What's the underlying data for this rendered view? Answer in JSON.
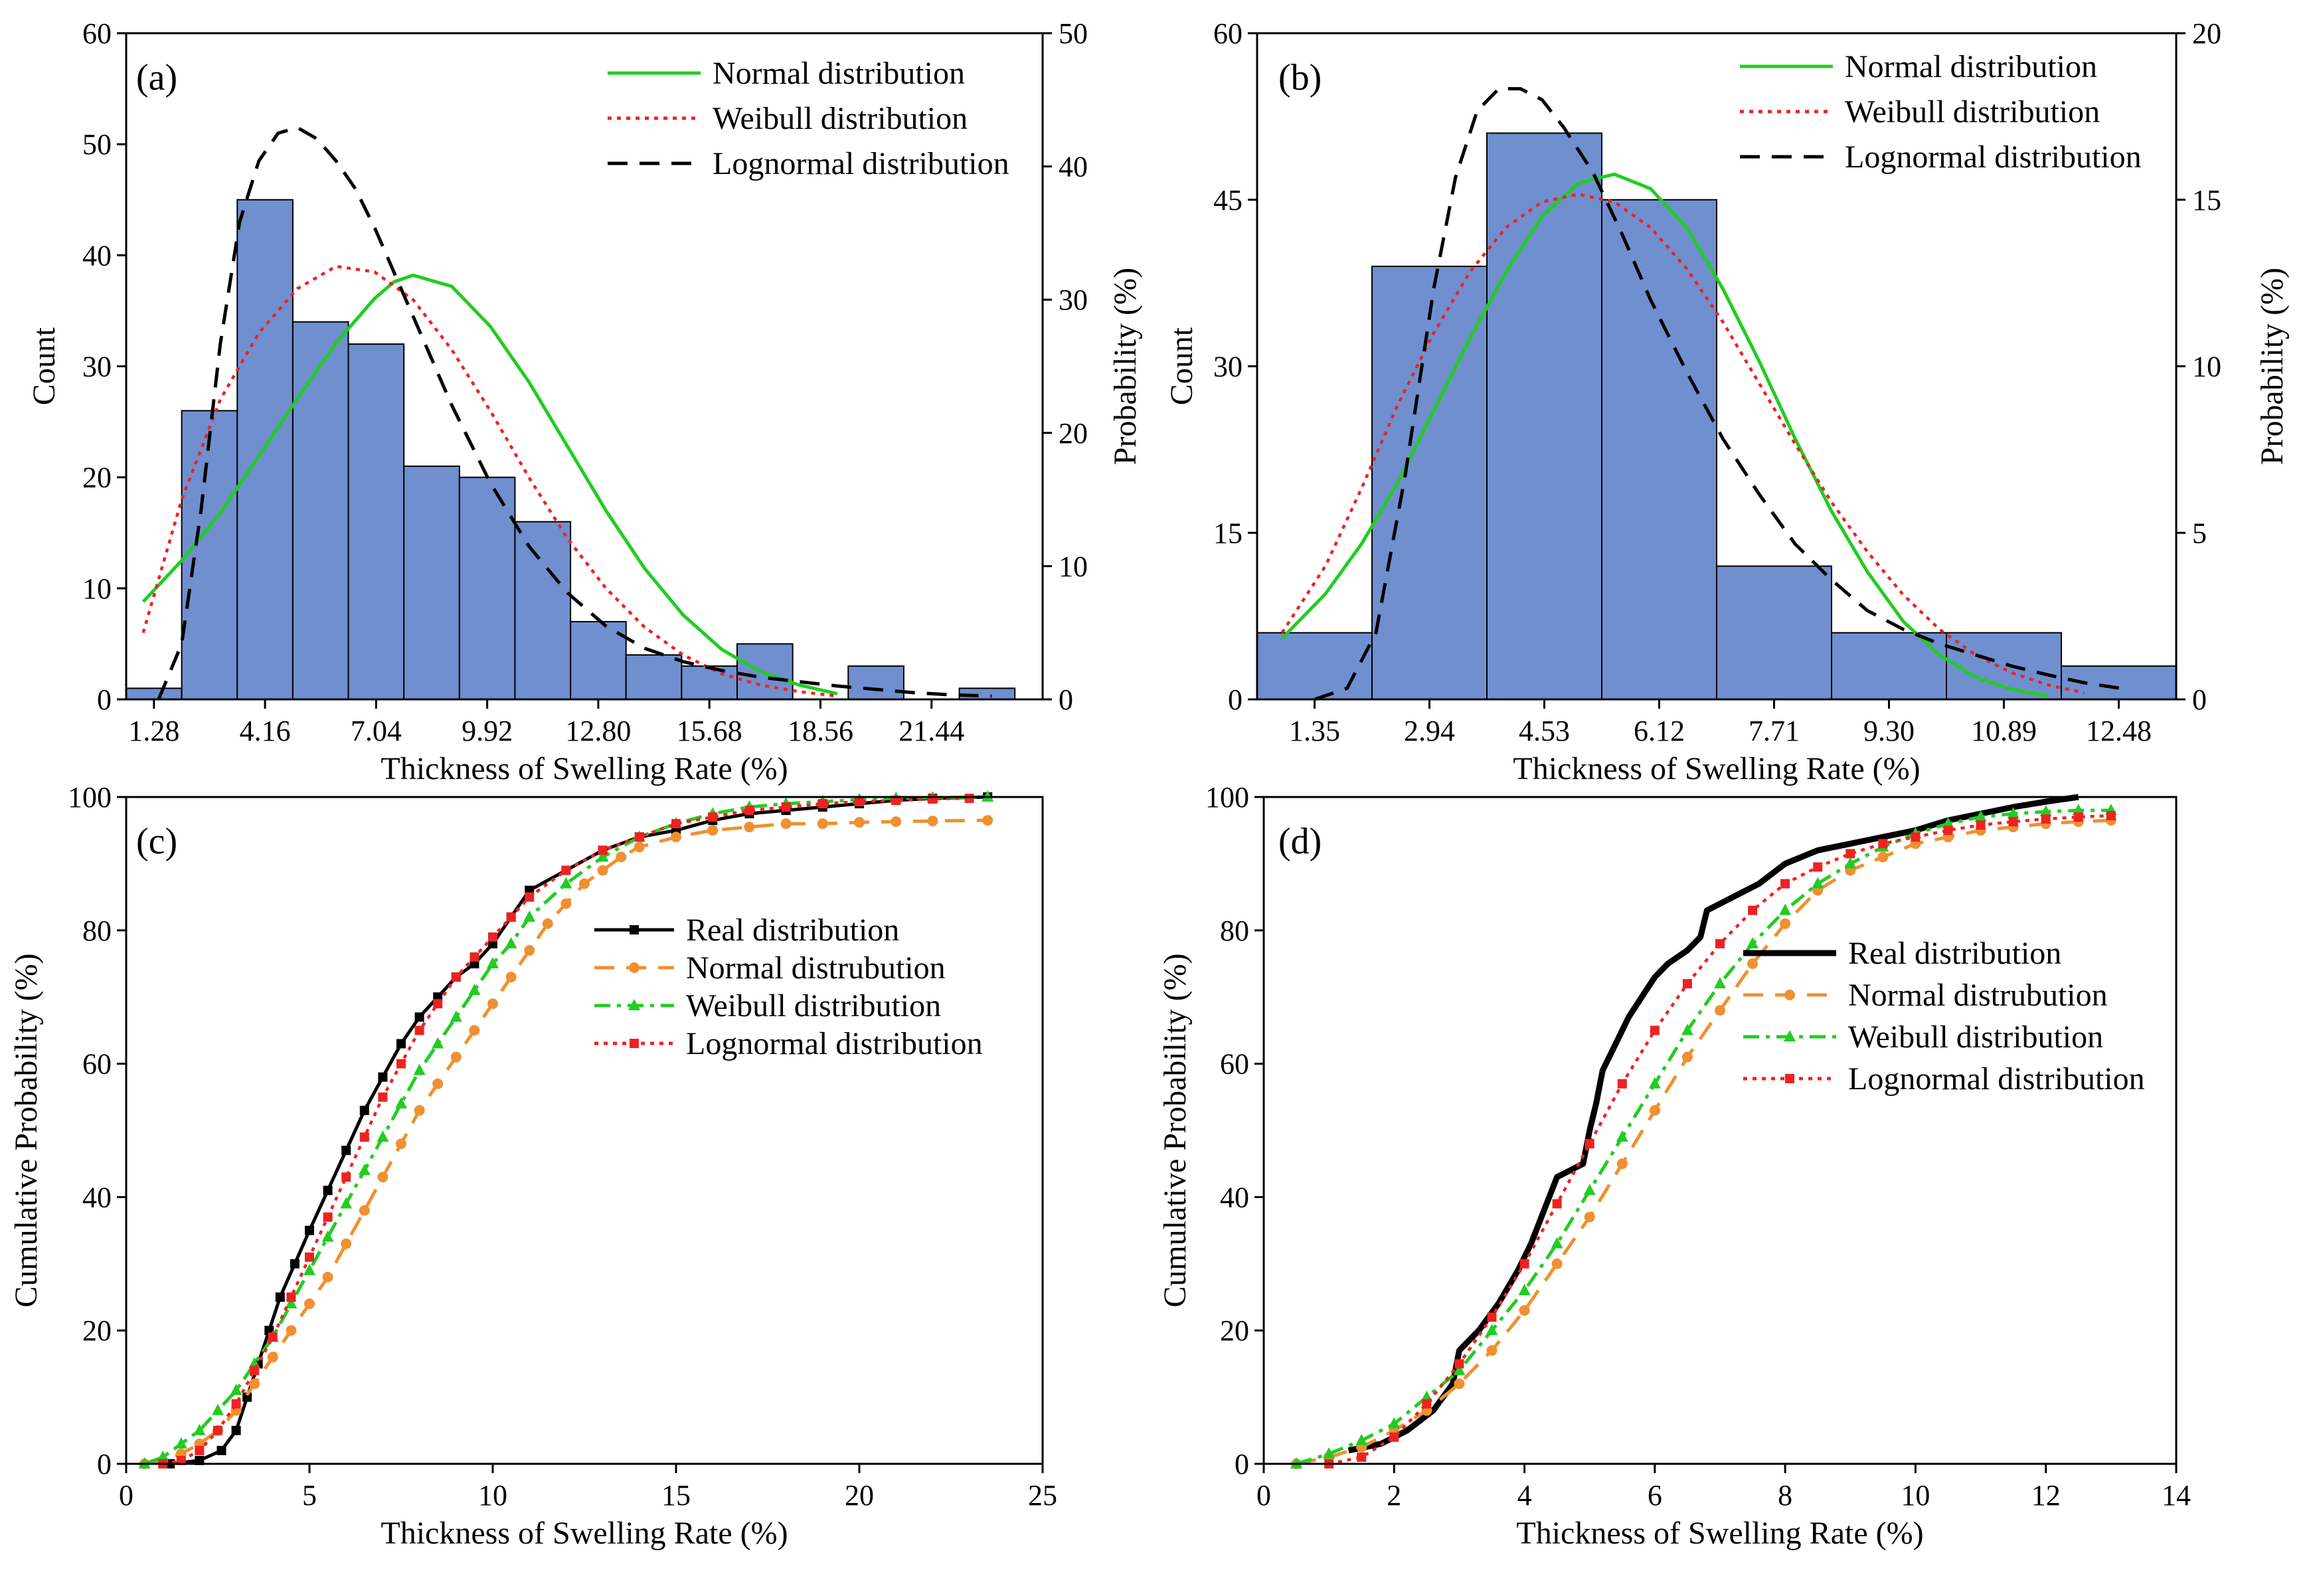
{
  "chart_data": [
    {
      "panel": "(a)",
      "type": "bar",
      "subtype": "histogram with fitted distribution curves",
      "xlabel": "Thickness of Swelling Rate (%)",
      "ylabel": "Count",
      "ylabel_right": "Probability (%)",
      "xtick_labels": [
        "1.28",
        "4.16",
        "7.04",
        "9.92",
        "12.80",
        "15.68",
        "18.56",
        "21.44"
      ],
      "xlim": [
        0.56,
        24.32
      ],
      "ylim": [
        0,
        60
      ],
      "yticks": [
        0,
        10,
        20,
        30,
        40,
        50,
        60
      ],
      "ylim_right": [
        0,
        50
      ],
      "yticks_right": [
        0,
        10,
        20,
        30,
        40,
        50
      ],
      "bin_width": 1.44,
      "bin_start": 0.56,
      "counts": [
        1,
        26,
        45,
        34,
        32,
        21,
        20,
        16,
        7,
        4,
        3,
        5,
        0,
        3,
        0,
        1
      ],
      "bar_color": "#6f8fcf",
      "series": [
        {
          "name": "Normal distribution",
          "color": "#22cc22",
          "style": "solid",
          "x": [
            1.0,
            2.0,
            3.0,
            4.0,
            5.0,
            6.0,
            7.0,
            7.5,
            8.0,
            9.0,
            10.0,
            11.0,
            12.0,
            13.0,
            14.0,
            15.0,
            16.0,
            17.0,
            18.0,
            19.0
          ],
          "y": [
            8.8,
            12.5,
            16.8,
            21.9,
            27.1,
            32.1,
            36.1,
            37.6,
            38.2,
            37.2,
            33.6,
            28.6,
            22.8,
            17.0,
            11.8,
            7.6,
            4.5,
            2.5,
            1.3,
            0.5
          ]
        },
        {
          "name": "Weibull distribution",
          "color": "#ee2222",
          "style": "dotted",
          "x": [
            1.0,
            2.0,
            3.0,
            4.0,
            5.0,
            6.0,
            7.0,
            8.0,
            9.0,
            10.0,
            11.0,
            12.0,
            13.0,
            14.0,
            15.0,
            16.0,
            17.0,
            18.0,
            19.0
          ],
          "y": [
            6.0,
            18.0,
            27.0,
            33.0,
            37.0,
            39.0,
            38.5,
            36.0,
            31.5,
            26.0,
            20.0,
            14.5,
            10.0,
            6.5,
            4.0,
            2.3,
            1.3,
            0.7,
            0.3
          ]
        },
        {
          "name": "Lognormal distribution",
          "color": "#000000",
          "style": "dashed",
          "x": [
            1.4,
            2.0,
            2.5,
            3.0,
            3.5,
            4.0,
            4.5,
            5.0,
            5.5,
            6.0,
            6.5,
            7.0,
            8.0,
            9.0,
            10.0,
            11.0,
            12.0,
            13.0,
            14.0,
            15.0,
            16.0,
            17.0,
            18.0,
            19.0,
            20.0,
            21.0,
            22.0,
            23.0
          ],
          "y": [
            0.0,
            5.0,
            17.0,
            32.0,
            43.0,
            48.5,
            51.0,
            51.5,
            50.5,
            48.5,
            46.0,
            42.5,
            34.5,
            26.5,
            19.5,
            13.8,
            9.6,
            6.6,
            4.6,
            3.4,
            2.6,
            2.0,
            1.6,
            1.2,
            0.9,
            0.6,
            0.4,
            0.3
          ]
        }
      ],
      "legend_position": "top-right"
    },
    {
      "panel": "(b)",
      "type": "bar",
      "subtype": "histogram with fitted distribution curves",
      "xlabel": "Thickness of Swelling Rate (%)",
      "ylabel": "Count",
      "ylabel_right": "Probability (%)",
      "xtick_labels": [
        "1.35",
        "2.94",
        "4.53",
        "6.12",
        "7.71",
        "9.30",
        "10.89",
        "12.48"
      ],
      "xlim": [
        0.555,
        13.275
      ],
      "ylim": [
        0,
        60
      ],
      "yticks": [
        0,
        15,
        30,
        45,
        60
      ],
      "ylim_right": [
        0,
        20
      ],
      "yticks_right": [
        0,
        5,
        10,
        15,
        20
      ],
      "bin_width": 1.59,
      "bin_start": 0.555,
      "counts": [
        6,
        39,
        51,
        45,
        12,
        6,
        6,
        3
      ],
      "bar_color": "#6f8fcf",
      "series": [
        {
          "name": "Normal distribution",
          "color": "#22cc22",
          "style": "solid",
          "x": [
            0.9,
            1.5,
            2.0,
            2.5,
            3.0,
            3.5,
            4.0,
            4.5,
            5.0,
            5.5,
            6.0,
            6.5,
            7.0,
            7.5,
            8.0,
            8.5,
            9.0,
            9.5,
            10.0,
            10.5,
            11.0,
            11.5
          ],
          "y": [
            5.5,
            9.5,
            14.0,
            19.5,
            26.0,
            32.5,
            38.5,
            43.5,
            46.5,
            47.3,
            46.0,
            42.5,
            37.0,
            30.5,
            23.5,
            17.0,
            11.5,
            7.0,
            4.0,
            2.0,
            0.9,
            0.3
          ]
        },
        {
          "name": "Weibull distribution",
          "color": "#ee2222",
          "style": "dotted",
          "x": [
            0.9,
            1.5,
            2.0,
            2.5,
            3.0,
            3.5,
            4.0,
            4.5,
            5.0,
            5.5,
            6.0,
            6.5,
            7.0,
            7.5,
            8.0,
            8.5,
            9.0,
            9.5,
            10.0,
            10.5,
            11.0,
            11.5,
            12.0
          ],
          "y": [
            6.0,
            12.0,
            19.0,
            26.5,
            33.0,
            38.5,
            42.5,
            44.8,
            45.5,
            44.8,
            42.5,
            38.8,
            34.0,
            28.5,
            23.0,
            17.8,
            13.3,
            9.4,
            6.3,
            4.0,
            2.4,
            1.3,
            0.6
          ]
        },
        {
          "name": "Lognormal distribution",
          "color": "#000000",
          "style": "dashed",
          "x": [
            1.35,
            1.8,
            2.2,
            2.6,
            3.0,
            3.3,
            3.6,
            3.9,
            4.2,
            4.5,
            4.8,
            5.2,
            5.6,
            6.0,
            6.5,
            7.0,
            7.5,
            8.0,
            8.5,
            9.0,
            9.5,
            10.0,
            10.5,
            11.0,
            11.5,
            12.0,
            12.5
          ],
          "y": [
            0.0,
            1.0,
            6.0,
            20.0,
            37.0,
            47.0,
            53.0,
            55.0,
            55.0,
            54.0,
            51.5,
            47.5,
            42.0,
            36.0,
            29.5,
            23.5,
            18.5,
            14.0,
            10.8,
            8.0,
            6.3,
            5.0,
            4.0,
            3.0,
            2.2,
            1.5,
            1.0
          ]
        }
      ],
      "legend_position": "top-right"
    },
    {
      "panel": "(c)",
      "type": "line",
      "subtype": "cumulative distribution",
      "xlabel": "Thickness of Swelling Rate (%)",
      "ylabel": "Cumulative Probability (%)",
      "xlim": [
        0,
        25
      ],
      "xticks": [
        0,
        5,
        10,
        15,
        20,
        25
      ],
      "ylim": [
        0,
        100
      ],
      "yticks": [
        0,
        20,
        40,
        60,
        80,
        100
      ],
      "series": [
        {
          "name": "Real distribution",
          "color": "#000000",
          "style": "solid",
          "marker": "square",
          "x": [
            1.2,
            2.0,
            2.6,
            3.0,
            3.3,
            3.6,
            3.9,
            4.2,
            4.6,
            5.0,
            5.5,
            6.0,
            6.5,
            7.0,
            7.5,
            8.0,
            8.5,
            9.0,
            9.5,
            10.0,
            10.5,
            11.0,
            12.0,
            13.0,
            14.0,
            15.0,
            16.0,
            17.0,
            18.0,
            19.0,
            20.0,
            21.0,
            22.0,
            23.5
          ],
          "y": [
            0,
            0.5,
            2,
            5,
            10,
            15,
            20,
            25,
            30,
            35,
            41,
            47,
            53,
            58,
            63,
            67,
            70,
            73,
            75,
            78,
            82,
            86,
            89,
            92,
            94,
            95,
            96.5,
            97.5,
            98,
            98.5,
            99,
            99.5,
            99.8,
            100
          ]
        },
        {
          "name": "Normal distrubution",
          "color": "#f09030",
          "style": "dashed",
          "marker": "circle",
          "x": [
            0.5,
            1.0,
            1.5,
            2.0,
            2.5,
            3.0,
            3.5,
            4.0,
            4.5,
            5.0,
            5.5,
            6.0,
            6.5,
            7.0,
            7.5,
            8.0,
            8.5,
            9.0,
            9.5,
            10.0,
            10.5,
            11.0,
            11.5,
            12.0,
            12.5,
            13.0,
            13.5,
            14.0,
            15.0,
            16.0,
            17.0,
            18.0,
            19.0,
            20.0,
            21.0,
            22.0,
            23.5
          ],
          "y": [
            0,
            0.5,
            1.5,
            3,
            5,
            8,
            12,
            16,
            20,
            24,
            28,
            33,
            38,
            43,
            48,
            53,
            57,
            61,
            65,
            69,
            73,
            77,
            81,
            84,
            87,
            89,
            91,
            92.5,
            94,
            95,
            95.5,
            96,
            96,
            96.2,
            96.3,
            96.4,
            96.5
          ]
        },
        {
          "name": "Weibull distribution",
          "color": "#22cc22",
          "style": "dashdot",
          "marker": "triangle",
          "x": [
            0.5,
            1.0,
            1.5,
            2.0,
            2.5,
            3.0,
            3.5,
            4.0,
            4.5,
            5.0,
            5.5,
            6.0,
            6.5,
            7.0,
            7.5,
            8.0,
            8.5,
            9.0,
            9.5,
            10.0,
            10.5,
            11.0,
            12.0,
            13.0,
            14.0,
            15.0,
            16.0,
            17.0,
            18.0,
            19.0,
            20.0,
            21.0,
            22.0,
            23.5
          ],
          "y": [
            0,
            1,
            3,
            5,
            8,
            11,
            15,
            19,
            24,
            29,
            34,
            39,
            44,
            49,
            54,
            59,
            63,
            67,
            71,
            75,
            78,
            82,
            87,
            91,
            94,
            96,
            97.5,
            98.5,
            99,
            99.3,
            99.6,
            99.8,
            99.9,
            100
          ]
        },
        {
          "name": "Lognormal distribution",
          "color": "#ee2222",
          "style": "dotted",
          "marker": "square",
          "x": [
            1.0,
            1.5,
            2.0,
            2.5,
            3.0,
            3.5,
            4.0,
            4.5,
            5.0,
            5.5,
            6.0,
            6.5,
            7.0,
            7.5,
            8.0,
            8.5,
            9.0,
            9.5,
            10.0,
            10.5,
            11.0,
            12.0,
            13.0,
            14.0,
            15.0,
            16.0,
            17.0,
            18.0,
            19.0,
            20.0,
            21.0,
            22.0,
            23.0
          ],
          "y": [
            0,
            0.5,
            2,
            5,
            9,
            14,
            19,
            25,
            31,
            37,
            43,
            49,
            55,
            60,
            65,
            69,
            73,
            76,
            79,
            82,
            85,
            89,
            92,
            94,
            96,
            97,
            98,
            98.5,
            99,
            99.3,
            99.5,
            99.7,
            99.8
          ]
        }
      ],
      "legend_position": "center-right"
    },
    {
      "panel": "(d)",
      "type": "line",
      "subtype": "cumulative distribution",
      "xlabel": "Thickness of Swelling Rate (%)",
      "ylabel": "Cumulative Probability (%)",
      "xlim": [
        0,
        14
      ],
      "xticks": [
        0,
        2,
        4,
        6,
        8,
        10,
        12,
        14
      ],
      "ylim": [
        0,
        100
      ],
      "yticks": [
        0,
        20,
        40,
        60,
        80,
        100
      ],
      "series": [
        {
          "name": "Real distribution",
          "color": "#000000",
          "style": "solid-thick",
          "marker": "none",
          "x": [
            1.3,
            1.8,
            2.2,
            2.6,
            2.9,
            3.0,
            3.3,
            3.6,
            3.9,
            4.1,
            4.3,
            4.5,
            4.9,
            5.0,
            5.1,
            5.2,
            5.4,
            5.6,
            5.8,
            6.0,
            6.2,
            6.5,
            6.7,
            6.8,
            7.2,
            7.6,
            8.0,
            8.5,
            9.0,
            9.5,
            10.0,
            10.5,
            11.0,
            11.5,
            12.0,
            12.5
          ],
          "y": [
            2,
            3,
            5,
            8,
            12,
            17,
            20,
            24,
            29,
            33,
            38,
            43,
            45,
            50,
            54,
            59,
            63,
            67,
            70,
            73,
            75,
            77,
            79,
            83,
            85,
            87,
            90,
            92,
            93,
            94,
            95,
            96.5,
            97.5,
            98.5,
            99.3,
            100
          ]
        },
        {
          "name": "Normal distrubution",
          "color": "#f09030",
          "style": "dashed",
          "marker": "circle",
          "x": [
            0.5,
            1.0,
            1.5,
            2.0,
            2.5,
            3.0,
            3.5,
            4.0,
            4.5,
            5.0,
            5.5,
            6.0,
            6.5,
            7.0,
            7.5,
            8.0,
            8.5,
            9.0,
            9.5,
            10.0,
            10.5,
            11.0,
            11.5,
            12.0,
            12.5,
            13.0
          ],
          "y": [
            0,
            1,
            2.5,
            5,
            8,
            12,
            17,
            23,
            30,
            37,
            45,
            53,
            61,
            68,
            75,
            81,
            86,
            89,
            91,
            93,
            94,
            95,
            95.5,
            96,
            96.3,
            96.5
          ]
        },
        {
          "name": "Weibull distribution",
          "color": "#22cc22",
          "style": "dashdot",
          "marker": "triangle",
          "x": [
            0.5,
            1.0,
            1.5,
            2.0,
            2.5,
            3.0,
            3.5,
            4.0,
            4.5,
            5.0,
            5.5,
            6.0,
            6.5,
            7.0,
            7.5,
            8.0,
            8.5,
            9.0,
            9.5,
            10.0,
            10.5,
            11.0,
            11.5,
            12.0,
            12.5,
            13.0
          ],
          "y": [
            0,
            1.5,
            3.5,
            6,
            10,
            14,
            20,
            26,
            33,
            41,
            49,
            57,
            65,
            72,
            78,
            83,
            87,
            90,
            92.5,
            94.5,
            96,
            97,
            97.5,
            97.8,
            98,
            98
          ]
        },
        {
          "name": "Lognormal distribution",
          "color": "#ee2222",
          "style": "dotted",
          "marker": "square",
          "x": [
            1.0,
            1.5,
            2.0,
            2.5,
            3.0,
            3.5,
            4.0,
            4.5,
            5.0,
            5.5,
            6.0,
            6.5,
            7.0,
            7.5,
            8.0,
            8.5,
            9.0,
            9.5,
            10.0,
            10.5,
            11.0,
            11.5,
            12.0,
            12.5,
            13.0
          ],
          "y": [
            0,
            1,
            4,
            9,
            15,
            22,
            30,
            39,
            48,
            57,
            65,
            72,
            78,
            83,
            87,
            89.5,
            91.5,
            93,
            94,
            95,
            95.8,
            96.3,
            96.7,
            97,
            97.2
          ]
        }
      ],
      "legend_position": "center-right"
    }
  ]
}
